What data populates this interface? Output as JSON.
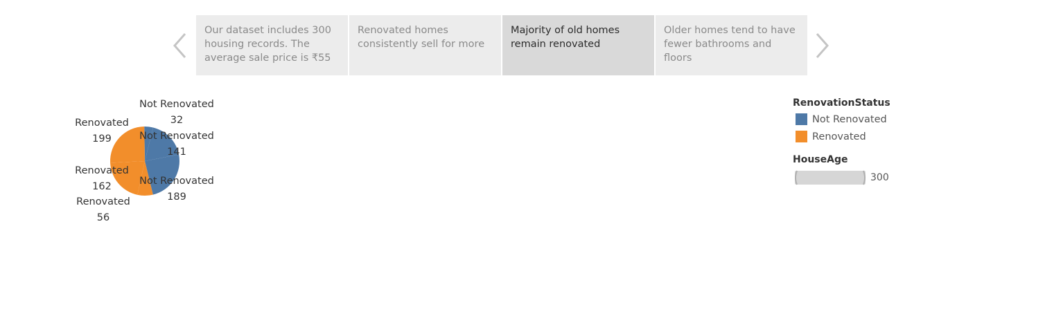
{
  "story": {
    "prev_icon": "chevron-left-icon",
    "next_icon": "chevron-right-icon",
    "points": [
      {
        "lines": [
          "Our dataset includes 300",
          "housing records. The",
          "average sale price is ₹55"
        ],
        "active": false
      },
      {
        "lines": [
          "Renovated homes",
          "consistently sell for more"
        ],
        "active": false
      },
      {
        "lines": [
          "Majority of old homes",
          "remain renovated"
        ],
        "active": true
      },
      {
        "lines": [
          "Older homes tend to have",
          "fewer bathrooms and",
          "floors"
        ],
        "active": false
      }
    ]
  },
  "chart_data": {
    "type": "pie",
    "slices": [
      {
        "category": "Not Renovated",
        "value": 32
      },
      {
        "category": "Not Renovated",
        "value": 141
      },
      {
        "category": "Not Renovated",
        "value": 189
      },
      {
        "category": "Renovated",
        "value": 56
      },
      {
        "category": "Renovated",
        "value": 162
      },
      {
        "category": "Renovated",
        "value": 199
      }
    ],
    "labels": [
      {
        "name": "Not Renovated",
        "value": "32"
      },
      {
        "name": "Not Renovated",
        "value": "141"
      },
      {
        "name": "Not Renovated",
        "value": "189"
      },
      {
        "name": "Renovated",
        "value": "199"
      },
      {
        "name": "Renovated",
        "value": "162"
      },
      {
        "name": "Renovated",
        "value": "56"
      }
    ],
    "colors": {
      "Not Renovated": "#4e79a7",
      "Renovated": "#f28e2b"
    }
  },
  "legend": {
    "color_title": "RenovationStatus",
    "items": [
      {
        "label": "Not Renovated",
        "color": "#4e79a7"
      },
      {
        "label": "Renovated",
        "color": "#f28e2b"
      }
    ],
    "size_title": "HouseAge",
    "size_max": "300"
  }
}
